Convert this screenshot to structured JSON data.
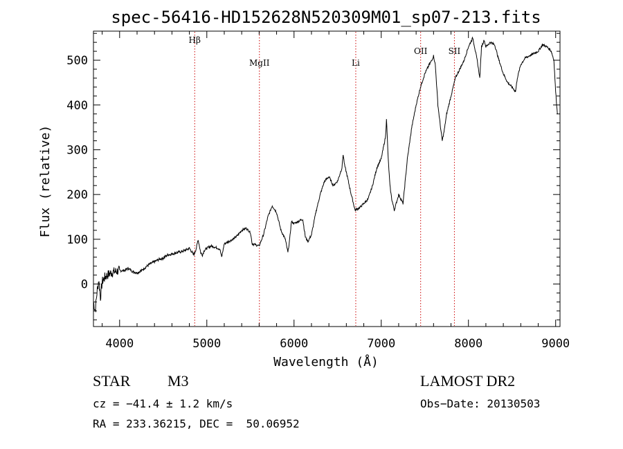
{
  "chart_data": {
    "type": "line",
    "title": "spec-56416-HD152628N520309M01_sp07-213.fits",
    "xlabel": "Wavelength (Å)",
    "ylabel": "Flux (relative)",
    "xlim": [
      3700,
      9050
    ],
    "ylim": [
      -95,
      565
    ],
    "xticks": [
      4000,
      5000,
      6000,
      7000,
      8000,
      9000
    ],
    "yticks": [
      0,
      100,
      200,
      300,
      400,
      500
    ],
    "grid": false,
    "line_color": "#000000",
    "marker_color": "#cc0000",
    "lines": [
      {
        "label": "Hβ",
        "x": 4861
      },
      {
        "label": "MgII",
        "x": 5603
      },
      {
        "label": "Li",
        "x": 6708
      },
      {
        "label": "OII",
        "x": 7452
      },
      {
        "label": "SII",
        "x": 7839
      }
    ],
    "series": [
      {
        "x": [
          3700,
          3720,
          3740,
          3760,
          3780,
          3800,
          3830,
          3860,
          3900,
          3950,
          4000,
          4050,
          4100,
          4150,
          4200,
          4250,
          4300,
          4350,
          4400,
          4450,
          4500,
          4550,
          4600,
          4650,
          4700,
          4750,
          4800,
          4850,
          4861,
          4880,
          4900,
          4930,
          4950,
          4970,
          5000,
          5050,
          5100,
          5150,
          5170,
          5200,
          5250,
          5300,
          5350,
          5400,
          5450,
          5500,
          5520,
          5550,
          5600,
          5650,
          5700,
          5750,
          5800,
          5850,
          5900,
          5930,
          5950,
          5970,
          6000,
          6050,
          6100,
          6130,
          6160,
          6200,
          6250,
          6300,
          6350,
          6400,
          6450,
          6500,
          6550,
          6563,
          6580,
          6600,
          6650,
          6700,
          6750,
          6800,
          6850,
          6900,
          6950,
          7000,
          7050,
          7060,
          7080,
          7100,
          7120,
          7150,
          7200,
          7250,
          7300,
          7350,
          7400,
          7450,
          7500,
          7550,
          7580,
          7600,
          7620,
          7650,
          7680,
          7700,
          7720,
          7750,
          7800,
          7850,
          7900,
          7950,
          8000,
          8050,
          8080,
          8100,
          8130,
          8150,
          8180,
          8200,
          8250,
          8300,
          8350,
          8400,
          8450,
          8500,
          8540,
          8560,
          8600,
          8650,
          8700,
          8750,
          8800,
          8850,
          8900,
          8950,
          8980,
          9000,
          9020
        ],
        "y": [
          -40,
          -60,
          -20,
          10,
          -30,
          5,
          15,
          20,
          25,
          28,
          30,
          30,
          35,
          28,
          25,
          30,
          38,
          45,
          50,
          55,
          58,
          65,
          67,
          70,
          72,
          75,
          80,
          65,
          70,
          80,
          100,
          70,
          65,
          75,
          80,
          85,
          82,
          78,
          60,
          90,
          95,
          100,
          108,
          120,
          125,
          115,
          90,
          88,
          85,
          110,
          150,
          175,
          160,
          120,
          100,
          70,
          100,
          140,
          135,
          140,
          145,
          105,
          95,
          110,
          160,
          200,
          230,
          240,
          220,
          230,
          260,
          290,
          265,
          250,
          205,
          165,
          170,
          180,
          190,
          220,
          260,
          280,
          330,
          370,
          280,
          220,
          190,
          165,
          200,
          180,
          280,
          350,
          400,
          440,
          470,
          490,
          500,
          510,
          490,
          400,
          350,
          320,
          340,
          380,
          420,
          460,
          480,
          500,
          530,
          550,
          520,
          500,
          460,
          530,
          545,
          530,
          540,
          535,
          500,
          470,
          450,
          440,
          430,
          460,
          490,
          505,
          510,
          515,
          520,
          535,
          530,
          520,
          500,
          430,
          380
        ]
      }
    ]
  },
  "footer": {
    "obj_class": "STAR",
    "obj_subclass": "M3",
    "survey": "LAMOST DR2",
    "cz": "cz = −41.4 ± 1.2 km/s",
    "obs_date": "Obs−Date: 20130503",
    "radec": "RA = 233.36215, DEC =  50.06952"
  }
}
